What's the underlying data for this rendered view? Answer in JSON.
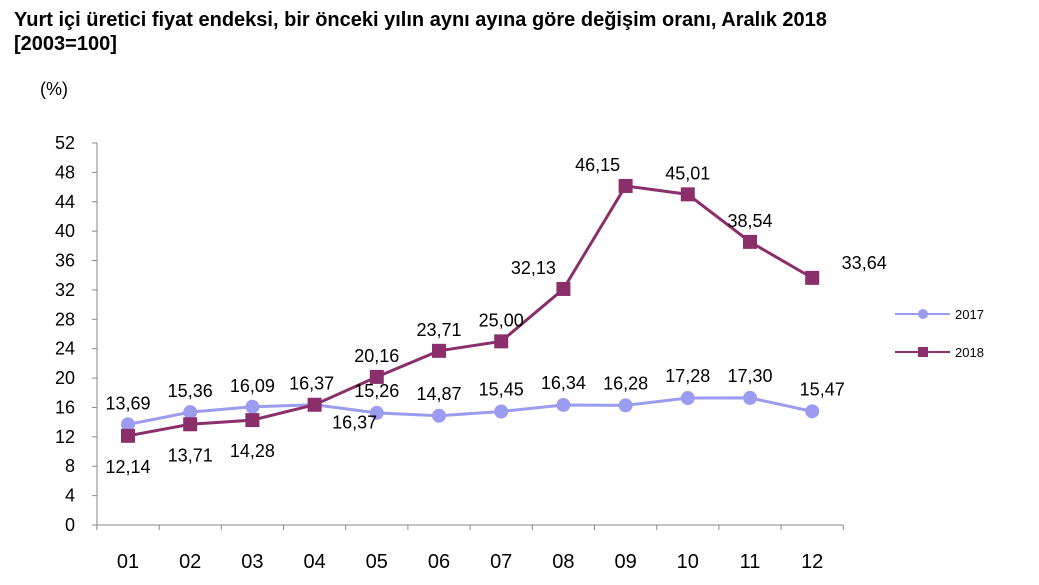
{
  "title_line1": "Yurt içi üretici fiyat endeksi, bir önceki yılın aynı ayına göre değişim oranı, Aralık 2018",
  "title_line2": "[2003=100]",
  "chart_data": {
    "type": "line",
    "ylabel": "(%)",
    "ylim": [
      0,
      52
    ],
    "yticks": [
      0,
      4,
      8,
      12,
      16,
      20,
      24,
      28,
      32,
      36,
      40,
      44,
      48,
      52
    ],
    "categories": [
      "01",
      "02",
      "03",
      "04",
      "05",
      "06",
      "07",
      "08",
      "09",
      "10",
      "11",
      "12"
    ],
    "grid": false,
    "legend_position": "right",
    "series": [
      {
        "name": "2017",
        "color": "#9b9bf0",
        "marker": "circle",
        "values": [
          13.69,
          15.36,
          16.09,
          16.37,
          15.26,
          14.87,
          15.45,
          16.34,
          16.28,
          17.28,
          17.3,
          15.47
        ],
        "labels": [
          "13,69",
          "15,36",
          "16,09",
          "16,37",
          "15,26",
          "14,87",
          "15,45",
          "16,34",
          "16,28",
          "17,28",
          "17,30",
          "15,47"
        ]
      },
      {
        "name": "2018",
        "color": "#8b2f6b",
        "marker": "square",
        "values": [
          12.14,
          13.71,
          14.28,
          16.37,
          20.16,
          23.71,
          25.0,
          32.13,
          46.15,
          45.01,
          38.54,
          33.64
        ],
        "labels": [
          "12,14",
          "13,71",
          "14,28",
          "16,37",
          "20,16",
          "23,71",
          "25,00",
          "32,13",
          "46,15",
          "45,01",
          "38,54",
          "33,64"
        ]
      }
    ]
  }
}
